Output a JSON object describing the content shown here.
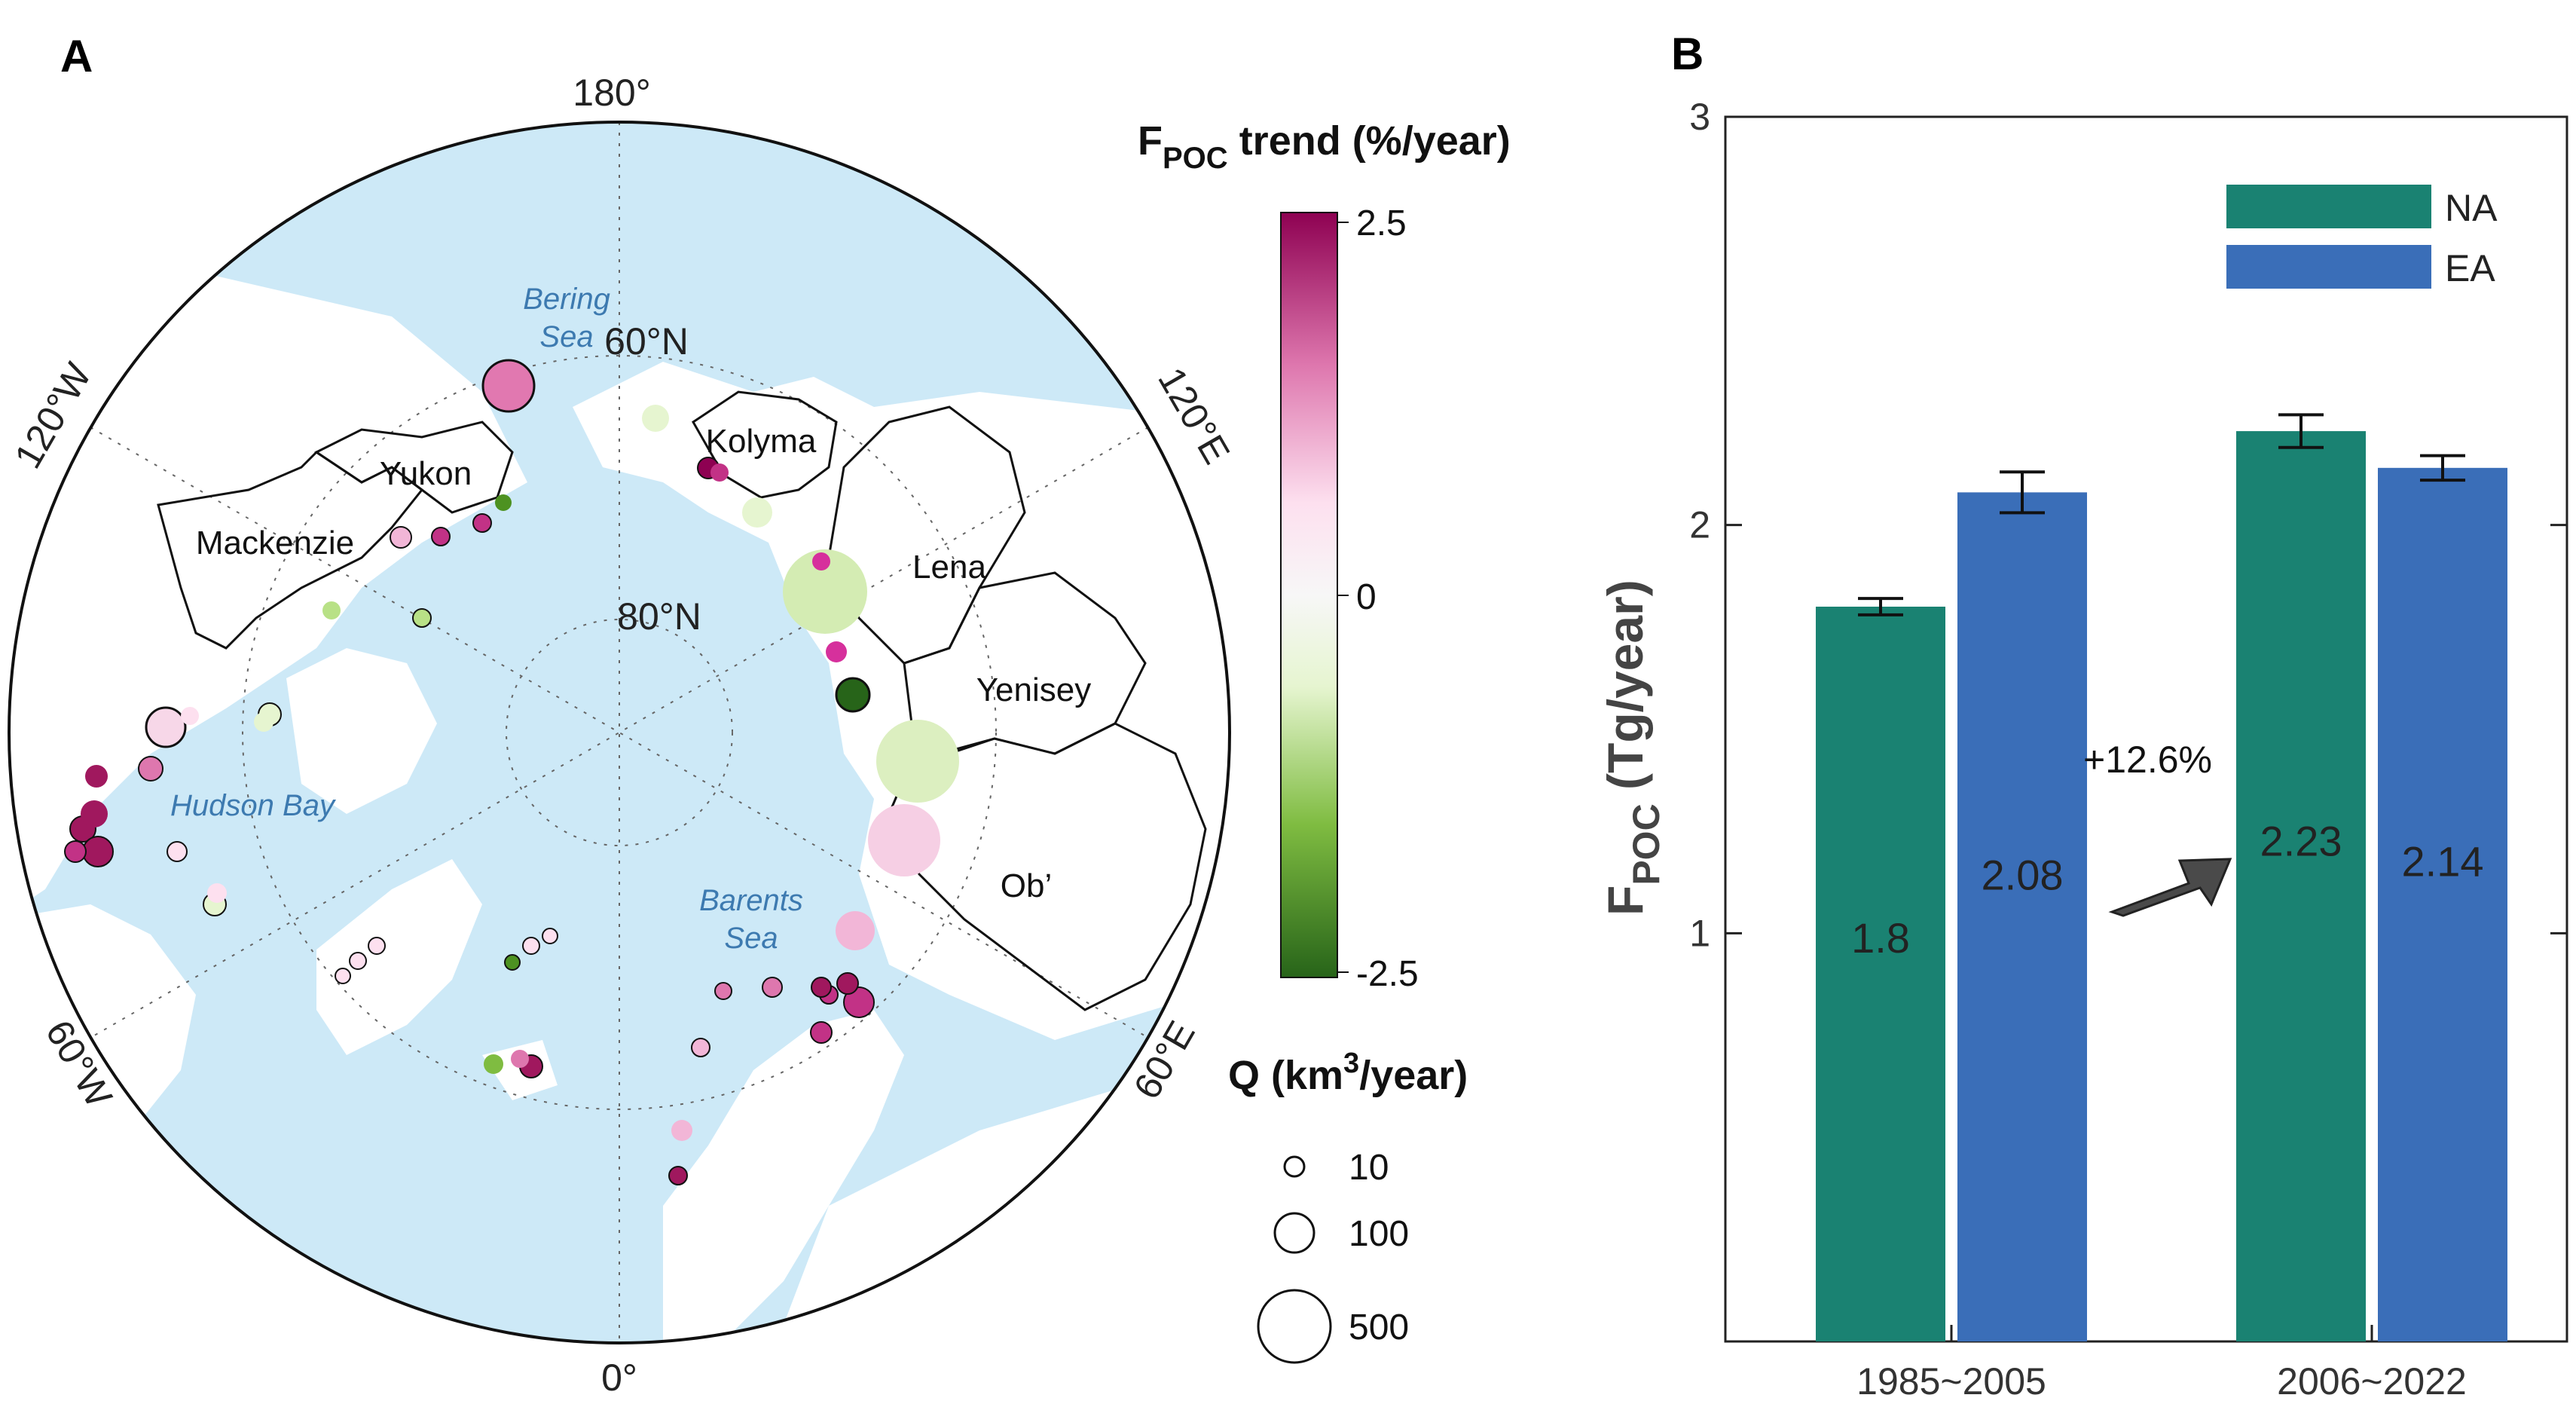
{
  "panel_a": {
    "letter": "A",
    "graticule": {
      "deg_180": "180°",
      "deg_0": "0°",
      "deg_120w": "120°W",
      "deg_120e": "120°E",
      "deg_60w": "60°W",
      "deg_60e": "60°E",
      "lat_60": "60°N",
      "lat_80": "80°N"
    },
    "basins": {
      "mackenzie": "Mackenzie",
      "yukon": "Yukon",
      "kolyma": "Kolyma",
      "lena": "Lena",
      "yenisey": "Yenisey",
      "ob": "Ob’"
    },
    "seas": {
      "bering_1": "Bering",
      "bering_2": "Sea",
      "hudson": "Hudson Bay",
      "barents_1": "Barents",
      "barents_2": "Sea"
    },
    "colorbar": {
      "title_main": "F",
      "title_sub": "POC",
      "title_rest": " trend (%/year)",
      "tick_max": "2.5",
      "tick_mid": "0",
      "tick_min": "-2.5",
      "colors": {
        "max": "#8e0152",
        "mid": "#f7f7f7",
        "min": "#276419"
      }
    },
    "size_legend": {
      "title_main": "Q (km",
      "title_sup": "3",
      "title_rest": "/year)",
      "items": [
        "10",
        "100",
        "500"
      ]
    },
    "colors": {
      "ocean": "#cde9f7",
      "land": "#ffffff"
    }
  },
  "panel_b": {
    "letter": "B",
    "chart_data": {
      "type": "bar",
      "categories": [
        "1985~2005",
        "2006~2022"
      ],
      "series": [
        {
          "name": "NA",
          "color": "#1a8272",
          "values": [
            1.8,
            2.23
          ],
          "labels": [
            "1.8",
            "2.23"
          ],
          "errors": [
            0.02,
            0.04
          ]
        },
        {
          "name": "EA",
          "color": "#3a6eb8",
          "values": [
            2.08,
            2.14
          ],
          "labels": [
            "2.08",
            "2.14"
          ],
          "errors": [
            0.05,
            0.03
          ]
        }
      ],
      "ylim": [
        0,
        3
      ],
      "yticks": [
        "1",
        "2",
        "3"
      ],
      "ylabel_main": "F",
      "ylabel_sub": "POC",
      "ylabel_rest": " (Tg/year)",
      "annotation": "+12.6%",
      "legend_position": "top-right"
    }
  }
}
